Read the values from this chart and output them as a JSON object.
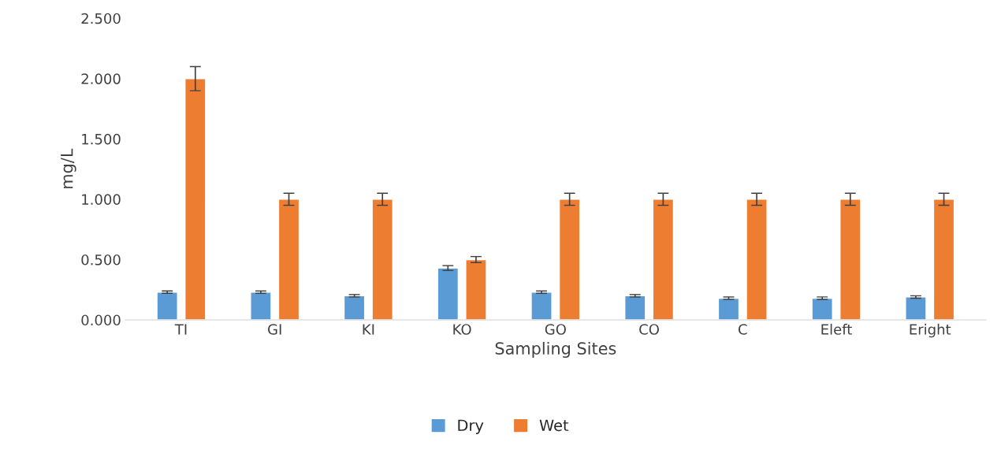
{
  "chart_data": {
    "type": "bar",
    "xlabel": "Sampling Sites",
    "ylabel": "mg/L",
    "categories": [
      "TI",
      "GI",
      "KI",
      "KO",
      "GO",
      "CO",
      "C",
      "Eleft",
      "Eright"
    ],
    "series": [
      {
        "name": "Dry",
        "color": "#5b9bd5",
        "values": [
          0.23,
          0.23,
          0.2,
          0.43,
          0.23,
          0.2,
          0.18,
          0.18,
          0.19
        ],
        "errors": [
          0.01,
          0.01,
          0.01,
          0.02,
          0.01,
          0.01,
          0.01,
          0.01,
          0.01
        ]
      },
      {
        "name": "Wet",
        "color": "#ed7d31",
        "values": [
          2.0,
          1.0,
          1.0,
          0.5,
          1.0,
          1.0,
          1.0,
          1.0,
          1.0
        ],
        "errors": [
          0.1,
          0.05,
          0.05,
          0.025,
          0.05,
          0.05,
          0.05,
          0.05,
          0.05
        ]
      }
    ],
    "ylim": [
      0,
      2.5
    ],
    "yticks": [
      {
        "value": 0,
        "label": "0.000"
      },
      {
        "value": 0.5,
        "label": "0.500"
      },
      {
        "value": 1,
        "label": "1.000"
      },
      {
        "value": 1.5,
        "label": "1.500"
      },
      {
        "value": 2,
        "label": "2.000"
      },
      {
        "value": 2.5,
        "label": "2.500"
      }
    ],
    "legend": "bottom",
    "grid": false
  }
}
